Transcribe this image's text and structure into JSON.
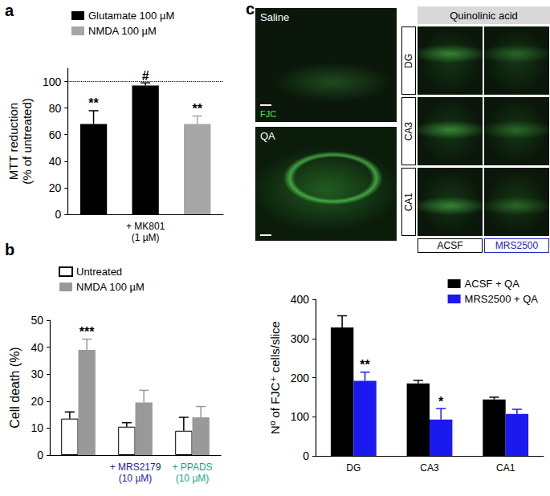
{
  "chart_data": [
    {
      "type": "bar",
      "panel_label": "a",
      "ylabel": "MTT reduction\n(% of untreated)",
      "categories": [
        null,
        "+ MK801\n(1 µM)",
        null
      ],
      "series": [
        {
          "name": "Glutamate 100 µM",
          "color": "#000000",
          "values": [
            68,
            97,
            null
          ],
          "errors": [
            10,
            2,
            null
          ],
          "annotations": [
            "**",
            "#",
            null
          ]
        },
        {
          "name": "NMDA 100 µM",
          "color": "#a6a6a6",
          "values": [
            null,
            null,
            68
          ],
          "errors": [
            null,
            null,
            6
          ],
          "annotations": [
            null,
            null,
            "**"
          ]
        }
      ],
      "reference_line": 100,
      "ylim": [
        0,
        110
      ],
      "yticks": [
        0,
        20,
        40,
        60,
        80,
        100
      ],
      "legend": "top-left",
      "grid": false
    },
    {
      "type": "bar",
      "panel_label": "b",
      "ylabel": "Cell death (%)",
      "categories": [
        null,
        "+ MRS2179\n(10 µM)",
        "+ PPADS\n(10 µM)"
      ],
      "series": [
        {
          "name": "Untreated",
          "color": "#ffffff",
          "values": [
            13.5,
            10.5,
            9
          ],
          "errors": [
            2.5,
            1.5,
            5
          ]
        },
        {
          "name": "NMDA 100 µM",
          "color": "#999999",
          "values": [
            39,
            19.5,
            14
          ],
          "errors": [
            4,
            4.5,
            4
          ],
          "annotations": [
            "***",
            null,
            null
          ]
        }
      ],
      "ylim": [
        0,
        50
      ],
      "yticks": [
        0,
        10,
        20,
        30,
        40,
        50
      ],
      "legend": "top-left",
      "grid": false
    },
    {
      "type": "bar",
      "ylabel": "Nº of FJC⁺ cells/slice",
      "categories": [
        "DG",
        "CA3",
        "CA1"
      ],
      "series": [
        {
          "name": "ACSF + QA",
          "color": "#000000",
          "values": [
            328,
            185,
            144
          ],
          "errors": [
            30,
            8,
            6
          ]
        },
        {
          "name": "MRS2500 + QA",
          "color": "#1a1af0",
          "values": [
            192,
            93,
            107
          ],
          "errors": [
            22,
            28,
            12
          ],
          "annotations": [
            "**",
            "*",
            null
          ]
        }
      ],
      "ylim": [
        0,
        400
      ],
      "yticks": [
        0,
        100,
        200,
        300,
        400
      ],
      "legend": "top-right",
      "grid": false
    }
  ],
  "micrographs": {
    "panel_label": "c",
    "overview": [
      {
        "label": "Saline",
        "stain": "FJC"
      },
      {
        "label": "QA"
      }
    ],
    "header": "Quinolinic acid",
    "rows": [
      "DG",
      "CA3",
      "CA1"
    ],
    "columns": [
      "ACSF",
      "MRS2500"
    ]
  }
}
